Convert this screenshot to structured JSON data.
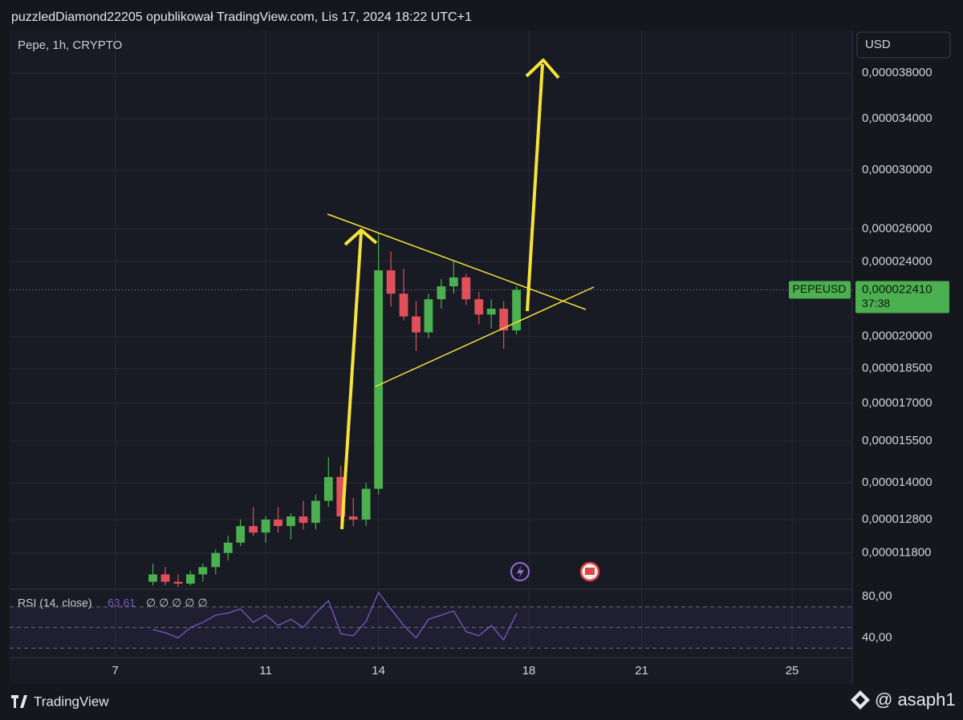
{
  "header": {
    "title": "puzzledDiamond22205 opublikował TradingView.com, Lis 17, 2024 18:22 UTC+1",
    "brand": "TradingView",
    "watermark": "@ asaph1"
  },
  "chart_data": [
    {
      "type": "candlestick",
      "title": "Pepe, 1h, CRYPTO",
      "currency": "USD",
      "symbol": "PEPEUSD",
      "countdown": "37:38",
      "up_color": "#4caf50",
      "down_color": "#e0505a",
      "yscale": "log",
      "grid": true,
      "x": [
        8,
        8.33,
        8.67,
        9,
        9.33,
        9.67,
        10,
        10.33,
        10.67,
        11,
        11.33,
        11.67,
        12,
        12.33,
        12.67,
        13,
        13.33,
        13.67,
        14,
        14.33,
        14.67,
        15,
        15.33,
        15.67,
        16,
        16.33,
        16.67,
        17,
        17.33,
        17.67
      ],
      "open": [
        1.1e-05,
        1.12e-05,
        1.1e-05,
        1.095e-05,
        1.12e-05,
        1.14e-05,
        1.18e-05,
        1.21e-05,
        1.26e-05,
        1.24e-05,
        1.28e-05,
        1.26e-05,
        1.29e-05,
        1.27e-05,
        1.34e-05,
        1.42e-05,
        1.29e-05,
        1.28e-05,
        1.38e-05,
        2.35e-05,
        2.22e-05,
        2.1e-05,
        2.02e-05,
        2.19e-05,
        2.26e-05,
        2.31e-05,
        2.19e-05,
        2.11e-05,
        2.14e-05,
        2.03e-05
      ],
      "high": [
        1.15e-05,
        1.14e-05,
        1.12e-05,
        1.13e-05,
        1.15e-05,
        1.19e-05,
        1.23e-05,
        1.28e-05,
        1.32e-05,
        1.29e-05,
        1.32e-05,
        1.3e-05,
        1.34e-05,
        1.36e-05,
        1.49e-05,
        1.46e-05,
        1.35e-05,
        1.4e-05,
        2.57e-05,
        2.46e-05,
        2.36e-05,
        2.18e-05,
        2.22e-05,
        2.3e-05,
        2.4e-05,
        2.33e-05,
        2.23e-05,
        2.19e-05,
        2.18e-05,
        2.26e-05
      ],
      "low": [
        1.09e-05,
        1.09e-05,
        1.085e-05,
        1.09e-05,
        1.1e-05,
        1.12e-05,
        1.16e-05,
        1.2e-05,
        1.23e-05,
        1.21e-05,
        1.24e-05,
        1.22e-05,
        1.25e-05,
        1.25e-05,
        1.32e-05,
        1.27e-05,
        1.26e-05,
        1.26e-05,
        1.36e-05,
        2.15e-05,
        2.08e-05,
        1.93e-05,
        1.99e-05,
        2.14e-05,
        2.22e-05,
        2.16e-05,
        2.06e-05,
        2.04e-05,
        1.94e-05,
        2.01e-05
      ],
      "close": [
        1.12e-05,
        1.1e-05,
        1.095e-05,
        1.12e-05,
        1.14e-05,
        1.18e-05,
        1.21e-05,
        1.26e-05,
        1.24e-05,
        1.28e-05,
        1.26e-05,
        1.29e-05,
        1.27e-05,
        1.34e-05,
        1.42e-05,
        1.29e-05,
        1.28e-05,
        1.38e-05,
        2.35e-05,
        2.22e-05,
        2.1e-05,
        2.02e-05,
        2.19e-05,
        2.26e-05,
        2.31e-05,
        2.19e-05,
        2.11e-05,
        2.14e-05,
        2.03e-05,
        2.241e-05
      ],
      "value_labels": [
        null,
        null,
        null,
        null,
        null,
        null,
        null,
        null,
        null,
        null,
        null,
        null,
        null,
        null,
        null,
        null,
        null,
        null,
        null,
        null,
        null,
        null,
        null,
        null,
        null,
        null,
        null,
        null,
        null,
        "0,000022410"
      ],
      "xlim": [
        4.19,
        26.6
      ],
      "xticks": [
        7,
        11,
        14,
        18,
        21,
        25
      ],
      "ylim": [
        1.08e-05,
        4.2e-05
      ],
      "yticks": [
        {
          "value": 1.18e-05,
          "label": "0,000011800"
        },
        {
          "value": 1.28e-05,
          "label": "0,000012800"
        },
        {
          "value": 1.4e-05,
          "label": "0,000014000"
        },
        {
          "value": 1.55e-05,
          "label": "0,000015500"
        },
        {
          "value": 1.7e-05,
          "label": "0,000017000"
        },
        {
          "value": 1.85e-05,
          "label": "0,000018500"
        },
        {
          "value": 2e-05,
          "label": "0,000020000"
        },
        {
          "value": 2.4e-05,
          "label": "0,000024000"
        },
        {
          "value": 2.6e-05,
          "label": "0,000026000"
        },
        {
          "value": 3e-05,
          "label": "0,000030000"
        },
        {
          "value": 3.4e-05,
          "label": "0,000034000"
        },
        {
          "value": 3.8e-05,
          "label": "0,000038000"
        }
      ]
    },
    {
      "type": "line",
      "title": "RSI (14, close)",
      "placeholders": "∅ ∅ ∅ ∅ ∅",
      "color": "#7e57c2",
      "x": [
        8,
        8.33,
        8.67,
        9,
        9.33,
        9.67,
        10,
        10.33,
        10.67,
        11,
        11.33,
        11.67,
        12,
        12.33,
        12.67,
        13,
        13.33,
        13.67,
        14,
        14.33,
        14.67,
        15,
        15.33,
        15.67,
        16,
        16.33,
        16.67,
        17,
        17.33,
        17.67
      ],
      "values": [
        48,
        45,
        40,
        50,
        55,
        62,
        64,
        68,
        55,
        62,
        52,
        58,
        50,
        64,
        76,
        44,
        42,
        56,
        84,
        68,
        52,
        40,
        58,
        62,
        66,
        46,
        42,
        52,
        38,
        63.61
      ],
      "value_labels": [
        null,
        null,
        null,
        null,
        null,
        null,
        null,
        null,
        null,
        null,
        null,
        null,
        null,
        null,
        null,
        null,
        null,
        null,
        null,
        null,
        null,
        null,
        null,
        null,
        null,
        null,
        null,
        null,
        null,
        "63,61"
      ],
      "levels": [
        70,
        50,
        30
      ],
      "ylim": [
        21,
        87
      ],
      "yticks": [
        {
          "value": 80,
          "label": "80,00"
        },
        {
          "value": 40,
          "label": "40,00"
        }
      ]
    }
  ]
}
